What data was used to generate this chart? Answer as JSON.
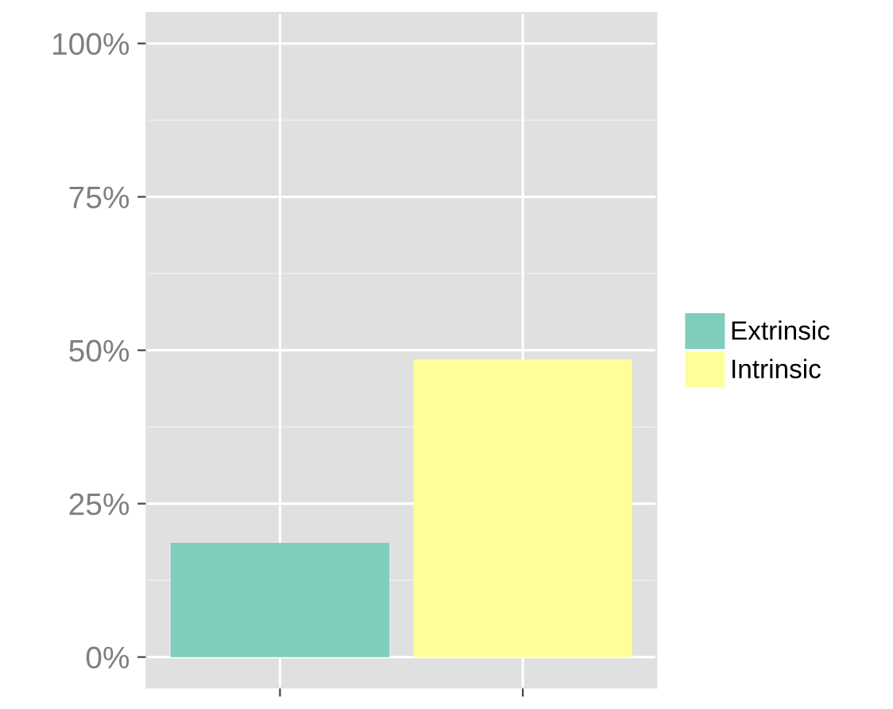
{
  "chart_data": {
    "type": "bar",
    "categories": [
      null,
      null
    ],
    "series": [
      {
        "name": "Extrinsic",
        "color": "#7fcdbb",
        "values": [
          18.6,
          null
        ]
      },
      {
        "name": "Intrinsic",
        "color": "#ffff99",
        "values": [
          null,
          48.5
        ]
      }
    ],
    "ylim": [
      -5,
      105
    ],
    "yticks": [
      {
        "value": 0,
        "label": "0%"
      },
      {
        "value": 25,
        "label": "25%"
      },
      {
        "value": 50,
        "label": "50%"
      },
      {
        "value": 75,
        "label": "75%"
      },
      {
        "value": 100,
        "label": "100%"
      }
    ],
    "grid": true,
    "legend": "right"
  }
}
